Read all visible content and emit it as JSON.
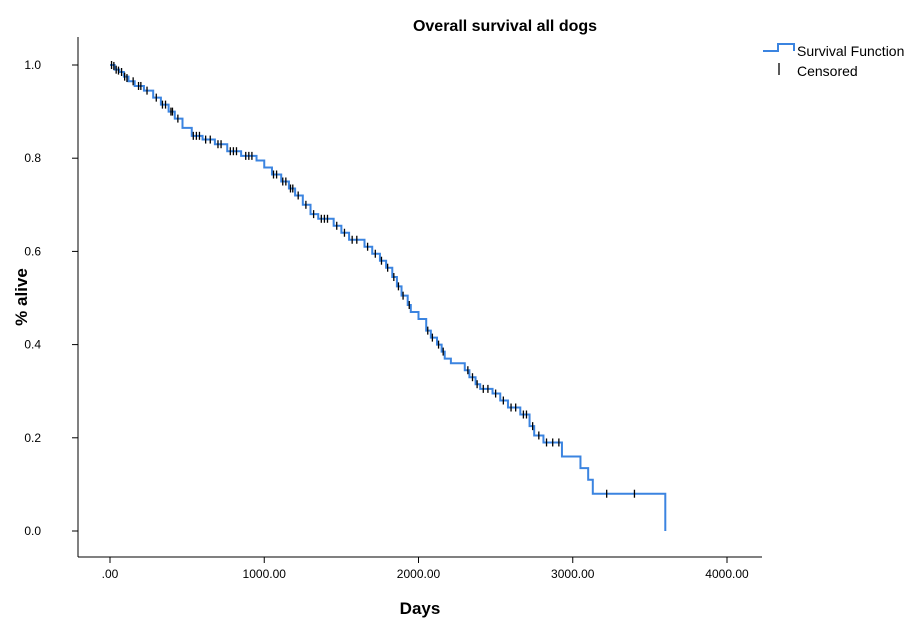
{
  "chart_data": {
    "type": "line",
    "title": "Overall survival all dogs",
    "xlabel": "Days",
    "ylabel": "% alive",
    "xlim": [
      0,
      4000
    ],
    "ylim": [
      0,
      1.0
    ],
    "x_ticks": [
      ".00",
      "1000.00",
      "2000.00",
      "3000.00",
      "4000.00"
    ],
    "y_ticks": [
      "0.0",
      "0.2",
      "0.4",
      "0.6",
      "0.8",
      "1.0"
    ],
    "grid": false,
    "legend_position": "top-right",
    "series": [
      {
        "name": "Survival Function",
        "color": "#3b84e0",
        "step": true,
        "points": [
          [
            0,
            1.0
          ],
          [
            30,
            0.99
          ],
          [
            60,
            0.985
          ],
          [
            90,
            0.975
          ],
          [
            120,
            0.965
          ],
          [
            160,
            0.955
          ],
          [
            220,
            0.945
          ],
          [
            280,
            0.93
          ],
          [
            330,
            0.915
          ],
          [
            380,
            0.9
          ],
          [
            420,
            0.885
          ],
          [
            470,
            0.865
          ],
          [
            530,
            0.848
          ],
          [
            600,
            0.84
          ],
          [
            680,
            0.83
          ],
          [
            760,
            0.815
          ],
          [
            850,
            0.805
          ],
          [
            950,
            0.795
          ],
          [
            1000,
            0.78
          ],
          [
            1050,
            0.765
          ],
          [
            1110,
            0.75
          ],
          [
            1160,
            0.735
          ],
          [
            1200,
            0.72
          ],
          [
            1250,
            0.7
          ],
          [
            1300,
            0.68
          ],
          [
            1350,
            0.67
          ],
          [
            1450,
            0.655
          ],
          [
            1500,
            0.64
          ],
          [
            1550,
            0.625
          ],
          [
            1650,
            0.61
          ],
          [
            1700,
            0.595
          ],
          [
            1750,
            0.58
          ],
          [
            1790,
            0.565
          ],
          [
            1830,
            0.545
          ],
          [
            1860,
            0.525
          ],
          [
            1890,
            0.505
          ],
          [
            1930,
            0.485
          ],
          [
            1950,
            0.47
          ],
          [
            2000,
            0.455
          ],
          [
            2050,
            0.43
          ],
          [
            2080,
            0.415
          ],
          [
            2120,
            0.4
          ],
          [
            2150,
            0.385
          ],
          [
            2170,
            0.37
          ],
          [
            2210,
            0.36
          ],
          [
            2300,
            0.345
          ],
          [
            2330,
            0.33
          ],
          [
            2370,
            0.315
          ],
          [
            2400,
            0.305
          ],
          [
            2480,
            0.295
          ],
          [
            2530,
            0.28
          ],
          [
            2580,
            0.265
          ],
          [
            2660,
            0.25
          ],
          [
            2720,
            0.225
          ],
          [
            2750,
            0.205
          ],
          [
            2810,
            0.19
          ],
          [
            2930,
            0.16
          ],
          [
            3050,
            0.135
          ],
          [
            3100,
            0.11
          ],
          [
            3130,
            0.08
          ],
          [
            3600,
            0.0
          ]
        ]
      }
    ],
    "censored": {
      "name": "Censored",
      "color": "#000000",
      "points": [
        [
          10,
          1.0
        ],
        [
          25,
          0.998
        ],
        [
          40,
          0.99
        ],
        [
          55,
          0.988
        ],
        [
          75,
          0.985
        ],
        [
          95,
          0.975
        ],
        [
          110,
          0.972
        ],
        [
          150,
          0.965
        ],
        [
          185,
          0.955
        ],
        [
          200,
          0.955
        ],
        [
          240,
          0.945
        ],
        [
          300,
          0.93
        ],
        [
          340,
          0.915
        ],
        [
          360,
          0.915
        ],
        [
          395,
          0.9
        ],
        [
          405,
          0.9
        ],
        [
          440,
          0.885
        ],
        [
          540,
          0.848
        ],
        [
          560,
          0.848
        ],
        [
          580,
          0.848
        ],
        [
          620,
          0.84
        ],
        [
          650,
          0.84
        ],
        [
          700,
          0.83
        ],
        [
          720,
          0.83
        ],
        [
          780,
          0.815
        ],
        [
          800,
          0.815
        ],
        [
          820,
          0.815
        ],
        [
          880,
          0.805
        ],
        [
          900,
          0.805
        ],
        [
          920,
          0.805
        ],
        [
          1060,
          0.765
        ],
        [
          1080,
          0.765
        ],
        [
          1120,
          0.75
        ],
        [
          1140,
          0.75
        ],
        [
          1170,
          0.735
        ],
        [
          1185,
          0.735
        ],
        [
          1220,
          0.72
        ],
        [
          1270,
          0.7
        ],
        [
          1320,
          0.68
        ],
        [
          1370,
          0.67
        ],
        [
          1390,
          0.67
        ],
        [
          1410,
          0.67
        ],
        [
          1470,
          0.655
        ],
        [
          1520,
          0.64
        ],
        [
          1570,
          0.625
        ],
        [
          1600,
          0.625
        ],
        [
          1670,
          0.61
        ],
        [
          1720,
          0.595
        ],
        [
          1760,
          0.58
        ],
        [
          1800,
          0.565
        ],
        [
          1840,
          0.545
        ],
        [
          1870,
          0.525
        ],
        [
          1900,
          0.505
        ],
        [
          1940,
          0.485
        ],
        [
          2060,
          0.43
        ],
        [
          2090,
          0.415
        ],
        [
          2130,
          0.4
        ],
        [
          2160,
          0.385
        ],
        [
          2320,
          0.345
        ],
        [
          2350,
          0.33
        ],
        [
          2380,
          0.315
        ],
        [
          2420,
          0.305
        ],
        [
          2450,
          0.305
        ],
        [
          2500,
          0.295
        ],
        [
          2550,
          0.28
        ],
        [
          2600,
          0.265
        ],
        [
          2630,
          0.265
        ],
        [
          2680,
          0.25
        ],
        [
          2700,
          0.25
        ],
        [
          2740,
          0.225
        ],
        [
          2780,
          0.205
        ],
        [
          2830,
          0.19
        ],
        [
          2870,
          0.19
        ],
        [
          2910,
          0.19
        ],
        [
          3220,
          0.08
        ],
        [
          3400,
          0.08
        ]
      ]
    },
    "legend": [
      {
        "label": "Survival Function",
        "kind": "step-line",
        "color": "#3b84e0"
      },
      {
        "label": "Censored",
        "kind": "tick",
        "color": "#000000"
      }
    ]
  }
}
